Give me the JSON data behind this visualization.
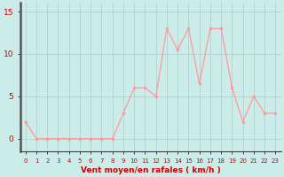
{
  "hours": [
    0,
    1,
    2,
    3,
    4,
    5,
    6,
    7,
    8,
    9,
    10,
    11,
    12,
    13,
    14,
    15,
    16,
    17,
    18,
    19,
    20,
    21,
    22,
    23
  ],
  "wind_values": [
    2,
    0,
    0,
    0,
    0,
    0,
    0,
    0,
    0,
    3,
    6,
    6,
    5,
    13,
    10.5,
    13,
    6.5,
    13,
    13,
    6,
    2,
    5,
    3,
    3
  ],
  "line_color": "#ff9999",
  "marker_color": "#ff9999",
  "bg_color": "#ccecea",
  "grid_color": "#aacccc",
  "axis_color": "#cc0000",
  "text_color": "#cc0000",
  "xlabel": "Vent moyen/en rafales ( km/h )",
  "yticks": [
    0,
    5,
    10,
    15
  ],
  "ylim": [
    -1.5,
    16
  ],
  "xlim": [
    -0.5,
    23.5
  ],
  "figsize": [
    3.2,
    2.0
  ],
  "dpi": 100
}
